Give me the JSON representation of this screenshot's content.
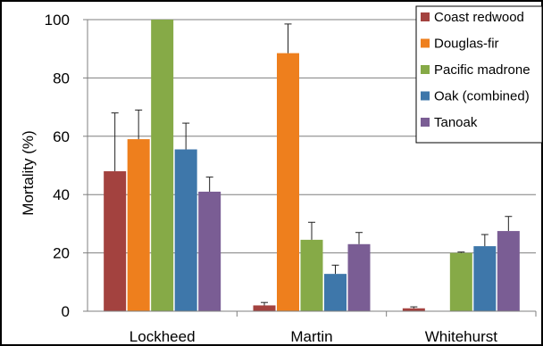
{
  "chart_data": {
    "type": "bar",
    "title": "",
    "xlabel": "",
    "ylabel": "Mortality (%)",
    "ylim": [
      0,
      100
    ],
    "yticks": [
      0,
      20,
      40,
      60,
      80,
      100
    ],
    "grid": "horizontal",
    "legend_position": "top-right",
    "categories": [
      "Lockheed",
      "Martin",
      "Whitehurst"
    ],
    "series": [
      {
        "name": "Coast redwood",
        "color": "#a3423f",
        "values": [
          48,
          2,
          1
        ],
        "errors": [
          20,
          1,
          0.5
        ]
      },
      {
        "name": "Douglas-fir",
        "color": "#ee7f1d",
        "values": [
          59,
          88.5,
          0
        ],
        "errors": [
          10,
          10,
          0
        ]
      },
      {
        "name": "Pacific madrone",
        "color": "#86aa47",
        "values": [
          100,
          24.5,
          20
        ],
        "errors": [
          0,
          6,
          0.3
        ]
      },
      {
        "name": "Oak (combined)",
        "color": "#3e77aa",
        "values": [
          55.5,
          12.8,
          22.3
        ],
        "errors": [
          9,
          3,
          4
        ]
      },
      {
        "name": "Tanoak",
        "color": "#7a5d94",
        "values": [
          41,
          23,
          27.5
        ],
        "errors": [
          5,
          4,
          5
        ]
      }
    ]
  }
}
